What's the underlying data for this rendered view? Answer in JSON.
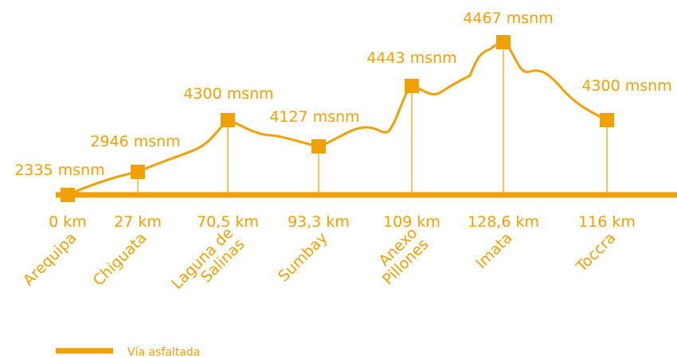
{
  "stops": [
    {
      "elevation": "2335 msnm",
      "distance": "0 km",
      "name": [
        "Arequipa"
      ]
    },
    {
      "elevation": "2946 msnm",
      "distance": "27 km",
      "name": [
        "Chiguata"
      ]
    },
    {
      "elevation": "4300 msnm",
      "distance": "70,5 km",
      "name": [
        "Laguna de",
        "Salinas"
      ]
    },
    {
      "elevation": "4127 msnm",
      "distance": "93,3 km",
      "name": [
        "Sumbay"
      ]
    },
    {
      "elevation": "4443 msnm",
      "distance": "109 km",
      "name": [
        "Anexo",
        "Pillones"
      ]
    },
    {
      "elevation": "4467 msnm",
      "distance": "128,6 km",
      "name": [
        "Imata"
      ]
    },
    {
      "elevation": "4300 msnm",
      "distance": "116 km",
      "name": [
        "Toccra"
      ]
    }
  ],
  "legend": {
    "label": "Vía asfaltada"
  }
}
